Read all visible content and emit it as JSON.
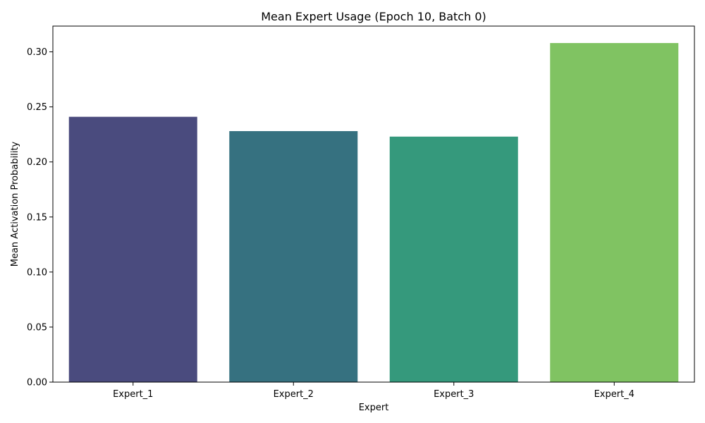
{
  "chart_data": {
    "type": "bar",
    "title": "Mean Expert Usage (Epoch 10, Batch 0)",
    "xlabel": "Expert",
    "ylabel": "Mean Activation Probability",
    "categories": [
      "Expert_1",
      "Expert_2",
      "Expert_3",
      "Expert_4"
    ],
    "values": [
      0.241,
      0.228,
      0.223,
      0.308
    ],
    "colors": [
      "#4a4b7e",
      "#367180",
      "#35997c",
      "#80c362"
    ],
    "ylim": [
      0,
      0.3234
    ],
    "yticks": [
      0.0,
      0.05,
      0.1,
      0.15,
      0.2,
      0.25,
      0.3
    ],
    "ytick_labels": [
      "0.00",
      "0.05",
      "0.10",
      "0.15",
      "0.20",
      "0.25",
      "0.30"
    ],
    "grid": false,
    "legend": "none"
  }
}
